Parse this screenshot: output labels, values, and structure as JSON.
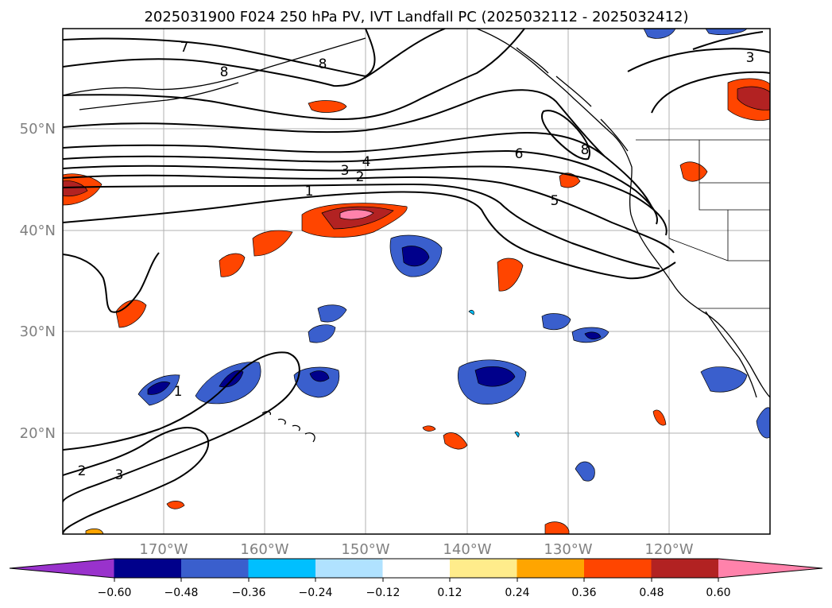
{
  "title": "2025031900 F024 250 hPa PV, IVT Landfall PC (2025032112 - 2025032412)",
  "map": {
    "lat_labels": [
      "50°N",
      "40°N",
      "30°N",
      "20°N"
    ],
    "lon_labels": [
      "170°W",
      "160°W",
      "150°W",
      "140°W",
      "130°W",
      "120°W"
    ],
    "gridlines": true,
    "extent": {
      "lon": [
        -180,
        -110
      ],
      "lat": [
        10,
        60
      ]
    }
  },
  "contours": {
    "labels": [
      "7",
      "8",
      "8",
      "1",
      "2",
      "3",
      "4",
      "6",
      "5",
      "8",
      "3",
      "1",
      "2",
      "3"
    ]
  },
  "colorbar": {
    "ticks": [
      "−0.60",
      "−0.48",
      "−0.36",
      "−0.24",
      "−0.12",
      "0.12",
      "0.24",
      "0.36",
      "0.48",
      "0.60"
    ],
    "colors": [
      "#9932cc",
      "#00008b",
      "#3a5fcd",
      "#00bfff",
      "#b0e2ff",
      "#ffffff",
      "#ffec8b",
      "#ffa500",
      "#ff4500",
      "#b22222",
      "#ff82ab"
    ],
    "extend": "both"
  }
}
